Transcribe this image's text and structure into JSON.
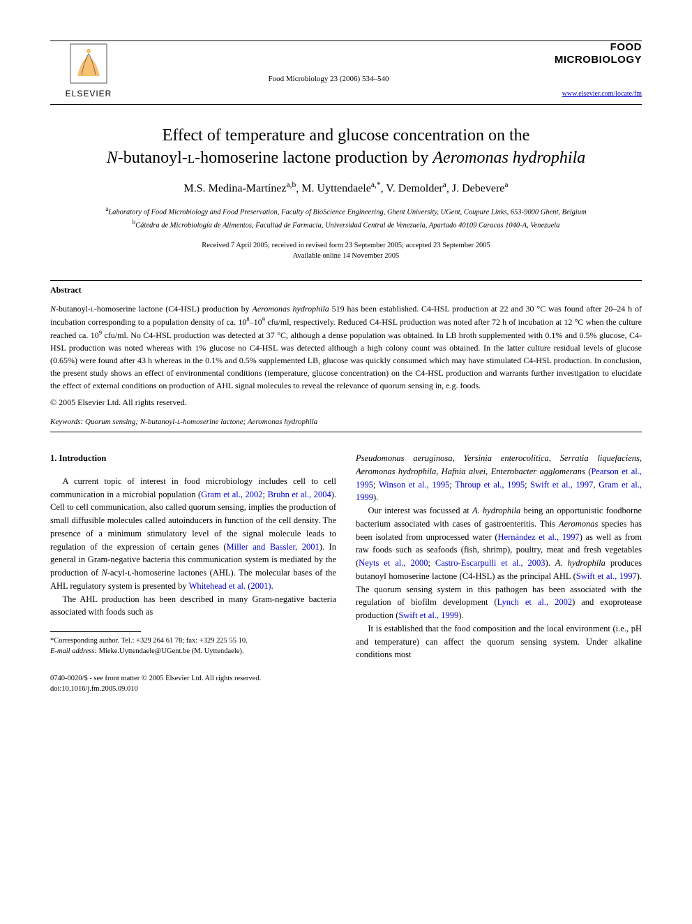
{
  "publisher": {
    "name": "ELSEVIER",
    "logo_color": "#f28c00",
    "logo_stroke": "#555555"
  },
  "journal": {
    "reference": "Food Microbiology 23 (2006) 534–540",
    "brand_line1": "FOOD",
    "brand_line2": "MICROBIOLOGY",
    "url": "www.elsevier.com/locate/fm"
  },
  "title_line1": "Effect of temperature and glucose concentration on the",
  "title_line2_prefix": "N",
  "title_line2_mid": "-butanoyl-",
  "title_line2_smallcap": "l",
  "title_line2_rest": "-homoserine lactone production by ",
  "title_line2_species": "Aeromonas hydrophila",
  "authors_html": "M.S. Medina-Martínez<sup>a,b</sup>, M. Uyttendaele<sup>a,*</sup>, V. Demolder<sup>a</sup>, J. Debevere<sup>a</sup>",
  "affiliations": {
    "a": "Laboratory of Food Microbiology and Food Preservation, Faculty of BioScience Engineering, Ghent University, UGent, Coupure Links, 653-9000 Ghent, Belgium",
    "b": "Cátedra de Microbiología de Alimentos, Facultad de Farmacia, Universidad Central de Venezuela, Apartado 40109 Caracas 1040-A, Venezuela"
  },
  "dates": {
    "received": "Received 7 April 2005; received in revised form 23 September 2005; accepted 23 September 2005",
    "online": "Available online 14 November 2005"
  },
  "abstract": {
    "heading": "Abstract",
    "text": "N-butanoyl-ʟ-homoserine lactone (C4-HSL) production by Aeromonas hydrophila 519 has been established. C4-HSL production at 22 and 30 °C was found after 20–24 h of incubation corresponding to a population density of ca. 10⁸–10⁹ cfu/ml, respectively. Reduced C4-HSL production was noted after 72 h of incubation at 12 °C when the culture reached ca. 10⁹ cfu/ml. No C4-HSL production was detected at 37 °C, although a dense population was obtained. In LB broth supplemented with 0.1% and 0.5% glucose, C4-HSL production was noted whereas with 1% glucose no C4-HSL was detected although a high colony count was obtained. In the latter culture residual levels of glucose (0.65%) were found after 43 h whereas in the 0.1% and 0.5% supplemented LB, glucose was quickly consumed which may have stimulated C4-HSL production. In conclusion, the present study shows an effect of environmental conditions (temperature, glucose concentration) on the C4-HSL production and warrants further investigation to elucidate the effect of external conditions on production of AHL signal molecules to reveal the relevance of quorum sensing in, e.g. foods.",
    "copyright": "© 2005 Elsevier Ltd. All rights reserved."
  },
  "keywords": {
    "label": "Keywords:",
    "text": " Quorum sensing; N-butanoyl-ʟ-homoserine lactone; Aeromonas hydrophila"
  },
  "section1": {
    "heading": "1. Introduction"
  },
  "col_left": {
    "p1_a": "A current topic of interest in food microbiology includes cell to cell communication in a microbial population (",
    "p1_ref1": "Gram et al., 2002",
    "p1_b": "; ",
    "p1_ref2": "Bruhn et al., 2004",
    "p1_c": "). Cell to cell communication, also called quorum sensing, implies the production of small diffusible molecules called autoinducers in function of the cell density. The presence of a minimum stimulatory level of the signal molecule leads to regulation of the expression of certain genes (",
    "p1_ref3": "Miller and Bassler, 2001",
    "p1_d": "). In general in Gram-negative bacteria this communication system is mediated by the production of ",
    "p1_ital": "N",
    "p1_e": "-acyl-ʟ-homoserine lactones (AHL). The molecular bases of the AHL regulatory system is presented by ",
    "p1_ref4": "Whitehead et al. (2001)",
    "p1_f": ".",
    "p2": "The AHL production has been described in many Gram-negative bacteria associated with foods such as"
  },
  "col_right": {
    "p1_species": "Pseudomonas aeruginosa, Yersinia enterocolitica, Serratia liquefaciens, Aeromonas hydrophila, Hafnia alvei, Enterobacter agglomerans",
    "p1_a": " (",
    "p1_ref1": "Pearson et al., 1995",
    "p1_b": "; ",
    "p1_ref2": "Winson et al., 1995",
    "p1_c": "; ",
    "p1_ref3": "Throup et al., 1995",
    "p1_d": "; ",
    "p1_ref4": "Swift et al., 1997",
    "p1_e": ", ",
    "p1_ref5": "Gram et al., 1999",
    "p1_f": ").",
    "p2_a": "Our interest was focussed at ",
    "p2_sp1": "A. hydrophila",
    "p2_b": " being an opportunistic foodborne bacterium associated with cases of gastroenteritis. This ",
    "p2_sp2": "Aeromonas",
    "p2_c": " species has been isolated from unprocessed water (",
    "p2_ref1": "Hernández et al., 1997",
    "p2_d": ") as well as from raw foods such as seafoods (fish, shrimp), poultry, meat and fresh vegetables (",
    "p2_ref2": "Neyts et al., 2000",
    "p2_e": "; ",
    "p2_ref3": "Castro-Escarpulli et al., 2003",
    "p2_f": "). ",
    "p2_sp3": "A. hydrophila",
    "p2_g": " produces butanoyl homoserine lactone (C4-HSL) as the principal AHL (",
    "p2_ref4": "Swift et al., 1997",
    "p2_h": "). The quorum sensing system in this pathogen has been associated with the regulation of biofilm development (",
    "p2_ref5": "Lynch et al., 2002",
    "p2_i": ") and exoprotease production (",
    "p2_ref6": "Swift et al., 1999",
    "p2_j": ").",
    "p3": "It is established that the food composition and the local environment (i.e., pH and temperature) can affect the quorum sensing system. Under alkaline conditions most"
  },
  "footnotes": {
    "corr_label": "*Corresponding author. Tel.: +329 264 61 78; fax: +329 225 55 10.",
    "email_label": "E-mail address:",
    "email_value": " Mieke.Uyttendaele@UGent.be (M. Uyttendaele)."
  },
  "bottom": {
    "line1": "0740-0020/$ - see front matter © 2005 Elsevier Ltd. All rights reserved.",
    "line2": "doi:10.1016/j.fm.2005.09.010"
  },
  "colors": {
    "link": "#0000cc",
    "text": "#000000",
    "background": "#ffffff"
  },
  "typography": {
    "body_font": "Georgia, Times New Roman, serif",
    "title_size_pt": 18,
    "body_size_pt": 9.5,
    "abstract_size_pt": 9
  }
}
